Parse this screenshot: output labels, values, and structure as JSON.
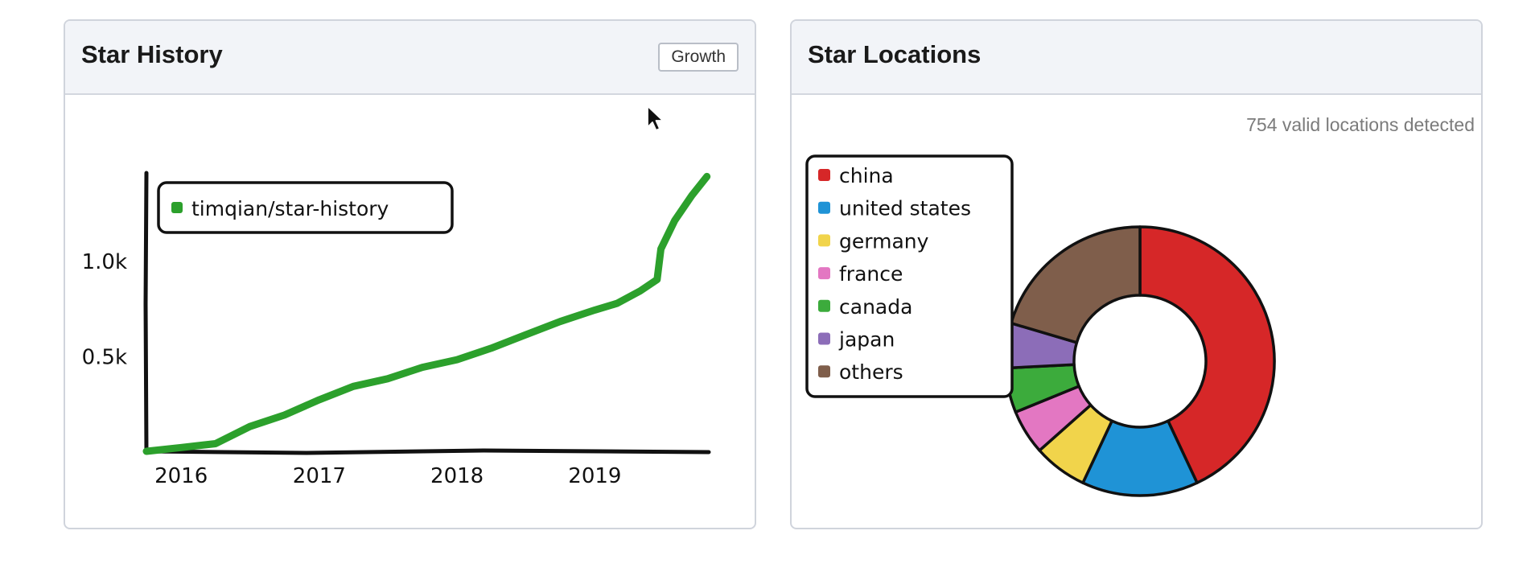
{
  "panels": {
    "history": {
      "title": "Star History",
      "growth_button": "Growth"
    },
    "locations": {
      "title": "Star Locations",
      "subtitle": "754 valid locations detected"
    }
  },
  "icons": {
    "cursor": "mouse-pointer-icon"
  },
  "chart_data": [
    {
      "type": "line",
      "title": "",
      "xlabel": "",
      "ylabel": "",
      "x_ticks": [
        "2016",
        "2017",
        "2018",
        "2019"
      ],
      "y_ticks": [
        "0.5k",
        "1.0k"
      ],
      "xlim": [
        "2015-10-01",
        "2019-11-01"
      ],
      "ylim": [
        0,
        1450
      ],
      "legend_position": "top-left",
      "series": [
        {
          "name": "timqian/star-history",
          "color": "#2ca02c",
          "x": [
            "2015-10-01",
            "2016-01-01",
            "2016-04-01",
            "2016-07-01",
            "2016-10-01",
            "2017-01-01",
            "2017-04-01",
            "2017-07-01",
            "2017-10-01",
            "2018-01-01",
            "2018-04-01",
            "2018-07-01",
            "2018-10-01",
            "2019-01-01",
            "2019-03-01",
            "2019-05-01",
            "2019-06-15",
            "2019-06-25",
            "2019-08-01",
            "2019-09-15",
            "2019-10-25"
          ],
          "y": [
            0,
            20,
            40,
            130,
            190,
            270,
            340,
            380,
            440,
            480,
            540,
            610,
            680,
            740,
            775,
            840,
            900,
            1060,
            1210,
            1340,
            1440
          ]
        }
      ]
    },
    {
      "type": "pie",
      "title": "",
      "legend_position": "top-left",
      "labels": [
        "china",
        "united states",
        "germany",
        "france",
        "canada",
        "japan",
        "others"
      ],
      "values": [
        40,
        13,
        6,
        5,
        5,
        5,
        19
      ],
      "colors": [
        "#d62728",
        "#1f93d6",
        "#f1d44b",
        "#e377c2",
        "#3cab3c",
        "#8c6db8",
        "#7f5e4b"
      ]
    }
  ]
}
